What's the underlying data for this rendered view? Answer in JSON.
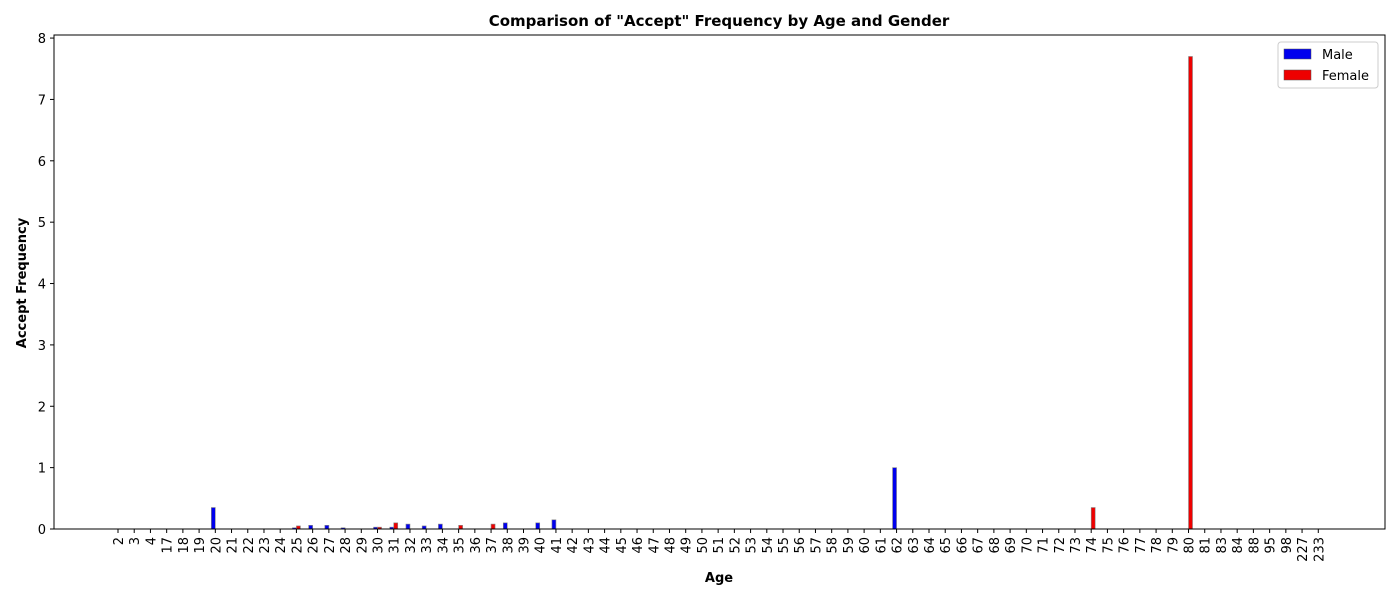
{
  "chart_data": {
    "type": "bar",
    "title": "Comparison of \"Accept\" Frequency by Age and Gender",
    "xlabel": "Age",
    "ylabel": "Accept Frequency",
    "ylim": [
      0,
      8.05
    ],
    "yticks": [
      0,
      1,
      2,
      3,
      4,
      5,
      6,
      7,
      8
    ],
    "grid": false,
    "legend_position": "top-right",
    "categories": [
      "2",
      "3",
      "4",
      "17",
      "18",
      "19",
      "20",
      "21",
      "22",
      "23",
      "24",
      "25",
      "26",
      "27",
      "28",
      "29",
      "30",
      "31",
      "32",
      "33",
      "34",
      "35",
      "36",
      "37",
      "38",
      "39",
      "40",
      "41",
      "42",
      "43",
      "44",
      "45",
      "46",
      "47",
      "48",
      "49",
      "50",
      "51",
      "52",
      "53",
      "54",
      "55",
      "56",
      "57",
      "58",
      "59",
      "60",
      "61",
      "62",
      "63",
      "64",
      "65",
      "66",
      "67",
      "68",
      "69",
      "70",
      "71",
      "72",
      "73",
      "74",
      "75",
      "76",
      "77",
      "78",
      "79",
      "80",
      "81",
      "83",
      "84",
      "88",
      "95",
      "98",
      "227",
      "233"
    ],
    "series": [
      {
        "name": "Male",
        "color": "#0000ee",
        "values": [
          0,
          0,
          0,
          0,
          0,
          0,
          0.35,
          0,
          0,
          0,
          0,
          0.02,
          0.06,
          0.06,
          0.02,
          0,
          0.03,
          0.03,
          0.08,
          0.05,
          0.08,
          0,
          0,
          0,
          0.1,
          0,
          0.1,
          0.15,
          0,
          0,
          0,
          0,
          0,
          0,
          0,
          0,
          0,
          0,
          0,
          0,
          0,
          0,
          0,
          0,
          0,
          0,
          0,
          0,
          1.0,
          0,
          0,
          0,
          0,
          0,
          0,
          0,
          0,
          0,
          0,
          0,
          0,
          0,
          0,
          0,
          0,
          0,
          0,
          0,
          0,
          0,
          0,
          0,
          0,
          0,
          0
        ]
      },
      {
        "name": "Female",
        "color": "#ee0000",
        "values": [
          0,
          0,
          0,
          0,
          0,
          0,
          0,
          0,
          0,
          0,
          0,
          0.05,
          0,
          0,
          0,
          0,
          0.03,
          0.1,
          0,
          0,
          0,
          0.06,
          0,
          0.08,
          0,
          0,
          0,
          0,
          0,
          0,
          0,
          0,
          0,
          0,
          0,
          0,
          0,
          0,
          0,
          0,
          0,
          0,
          0,
          0,
          0,
          0,
          0,
          0,
          0,
          0,
          0,
          0,
          0,
          0,
          0,
          0,
          0,
          0,
          0,
          0,
          0.35,
          0,
          0,
          0,
          0,
          0,
          7.7,
          0,
          0,
          0,
          0,
          0,
          0,
          0,
          0
        ]
      }
    ]
  }
}
